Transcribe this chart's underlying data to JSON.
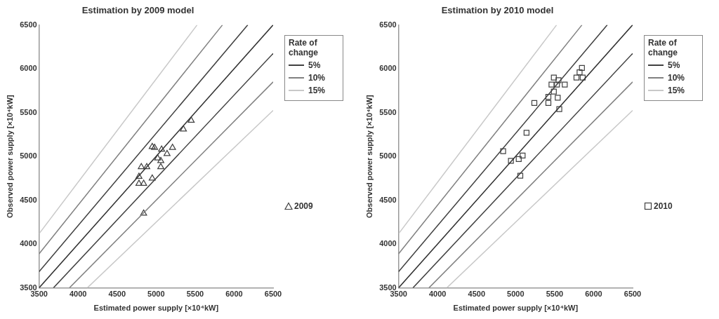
{
  "chart_data": [
    {
      "type": "scatter",
      "title": "Estimation by 2009 model",
      "xlabel": "Estimated power supply [×10⁴kW]",
      "ylabel": "Observed power supply [×10⁴kW]",
      "legend_title": "Rate of change",
      "legend": "right",
      "grid": false,
      "xlim": [
        3500,
        6500
      ],
      "xticks": [
        3500,
        4000,
        4500,
        5000,
        5500,
        6000,
        6500
      ],
      "ylim": [
        3500,
        6500
      ],
      "yticks": [
        3500,
        4000,
        4500,
        5000,
        5500,
        6000,
        6500
      ],
      "series": [
        {
          "type": "line",
          "color": "#303030",
          "marker": "none",
          "x": [
            3500,
            6500
          ],
          "values": [
            3500,
            6500
          ]
        },
        {
          "type": "line",
          "name": "5%",
          "color": "#404040",
          "marker": "none",
          "x": [
            3500,
            6175
          ],
          "values": [
            3684,
            6500
          ]
        },
        {
          "type": "line",
          "color": "#404040",
          "marker": "none",
          "x": [
            3684,
            6500
          ],
          "values": [
            3500,
            6175
          ]
        },
        {
          "type": "line",
          "name": "10%",
          "color": "#808080",
          "marker": "none",
          "x": [
            3500,
            5850
          ],
          "values": [
            3889,
            6500
          ]
        },
        {
          "type": "line",
          "color": "#808080",
          "marker": "none",
          "x": [
            3889,
            6500
          ],
          "values": [
            3500,
            5850
          ]
        },
        {
          "type": "line",
          "name": "15%",
          "color": "#c8c8c8",
          "marker": "none",
          "x": [
            3500,
            5525
          ],
          "values": [
            4118,
            6500
          ]
        },
        {
          "type": "line",
          "color": "#c8c8c8",
          "marker": "none",
          "x": [
            4118,
            6500
          ],
          "values": [
            3500,
            5525
          ]
        },
        {
          "type": "scatter",
          "name": "2009",
          "color": "#404040",
          "marker": "triangle",
          "x": [
            5450,
            5350,
            4950,
            4980,
            5070,
            5210,
            5140,
            5020,
            5060,
            5060,
            4810,
            4880,
            4780,
            4950,
            4780,
            4840,
            4840
          ],
          "values": [
            5410,
            5310,
            5110,
            5100,
            5080,
            5100,
            5030,
            4980,
            4950,
            4880,
            4880,
            4880,
            4770,
            4750,
            4690,
            4690,
            4350
          ]
        }
      ]
    },
    {
      "type": "scatter",
      "title": "Estimation by 2010 model",
      "xlabel": "Estimated power supply [×10⁴kW]",
      "ylabel": "Observed power supply [×10⁴kW]",
      "legend_title": "Rate of change",
      "legend": "right",
      "grid": false,
      "xlim": [
        3500,
        6500
      ],
      "xticks": [
        3500,
        4000,
        4500,
        5000,
        5500,
        6000,
        6500
      ],
      "ylim": [
        3500,
        6500
      ],
      "yticks": [
        3500,
        4000,
        4500,
        5000,
        5500,
        6000,
        6500
      ],
      "series": [
        {
          "type": "line",
          "color": "#303030",
          "marker": "none",
          "x": [
            3500,
            6500
          ],
          "values": [
            3500,
            6500
          ]
        },
        {
          "type": "line",
          "name": "5%",
          "color": "#404040",
          "marker": "none",
          "x": [
            3500,
            6175
          ],
          "values": [
            3684,
            6500
          ]
        },
        {
          "type": "line",
          "color": "#404040",
          "marker": "none",
          "x": [
            3684,
            6500
          ],
          "values": [
            3500,
            6175
          ]
        },
        {
          "type": "line",
          "name": "10%",
          "color": "#808080",
          "marker": "none",
          "x": [
            3500,
            5850
          ],
          "values": [
            3889,
            6500
          ]
        },
        {
          "type": "line",
          "color": "#808080",
          "marker": "none",
          "x": [
            3889,
            6500
          ],
          "values": [
            3500,
            5850
          ]
        },
        {
          "type": "line",
          "name": "15%",
          "color": "#c8c8c8",
          "marker": "none",
          "x": [
            3500,
            5525
          ],
          "values": [
            4118,
            6500
          ]
        },
        {
          "type": "line",
          "color": "#c8c8c8",
          "marker": "none",
          "x": [
            4118,
            6500
          ],
          "values": [
            3500,
            5525
          ]
        },
        {
          "type": "scatter",
          "name": "2010",
          "color": "#404040",
          "marker": "square",
          "x": [
            5850,
            5820,
            5860,
            5780,
            5490,
            5550,
            5460,
            5530,
            5630,
            5490,
            5420,
            5540,
            5240,
            5420,
            5560,
            5140,
            4840,
            5090,
            5040,
            4940,
            5060
          ],
          "values": [
            6010,
            5960,
            5900,
            5900,
            5900,
            5870,
            5820,
            5820,
            5820,
            5740,
            5680,
            5670,
            5610,
            5610,
            5540,
            5270,
            5060,
            5010,
            4970,
            4950,
            4780
          ]
        }
      ]
    }
  ]
}
